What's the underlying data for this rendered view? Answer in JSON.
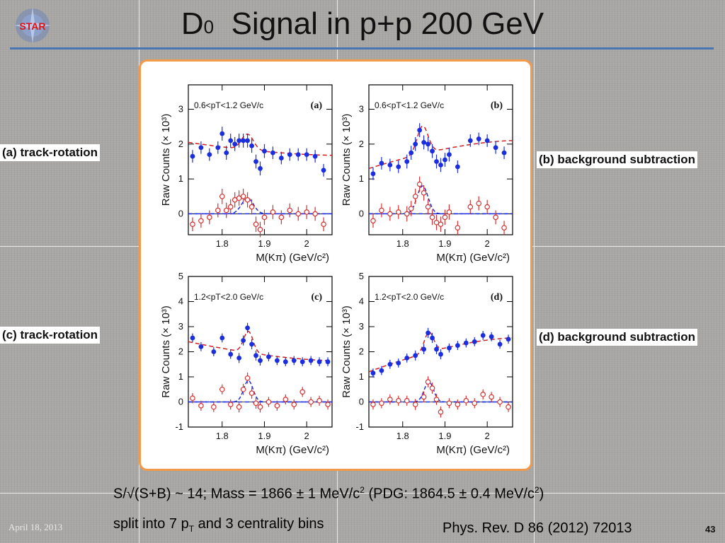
{
  "slide": {
    "title_main": "D",
    "title_sup": "0",
    "title_rest": "  Signal in p+p 200 GeV",
    "logo_text": "STAR",
    "labels": {
      "a": "(a) track-rotation",
      "b": "(b) background subtraction",
      "c": "(c) track-rotation",
      "d": "(d) background subtraction"
    },
    "line1_a": "S/√(S+B) ~ 14; Mass = 1866 ± 1 MeV/c",
    "line1_sup1": "2",
    "line1_b": " (PDG: 1864.5 ± 0.4 MeV/c",
    "line1_sup2": "2",
    "line1_c": ")",
    "line2_a": "split into 7 p",
    "line2_sub": "T",
    "line2_b": " and 3 centrality bins",
    "reference": "Phys. Rev. D 86 (2012) 72013",
    "date": "April 18, 2013",
    "page_number": "43"
  },
  "colors": {
    "accent_rule": "#4a77b4",
    "frame_border": "#f39a4a",
    "filled_points": "#1a2ee0",
    "open_points": "#d83030",
    "fit_red": "#d02020",
    "fit_blue": "#1a2ee0"
  },
  "chart_data": [
    {
      "type": "scatter",
      "panel": "(a)",
      "annotation": "0.6<pT<1.2 GeV/c",
      "xlabel": "M(Kπ) (GeV/c²)",
      "ylabel": "Raw Counts (× 10³)",
      "xlim": [
        1.72,
        2.06
      ],
      "ylim": [
        -0.6,
        3.7
      ],
      "xticks": [
        1.8,
        1.9,
        2.0
      ],
      "xtick_labels": [
        "1.8",
        "1.9",
        "2"
      ],
      "yticks": [
        0,
        1,
        2,
        3
      ],
      "ytick_labels": [
        "0",
        "1",
        "2",
        "3"
      ],
      "filled": {
        "x": [
          1.73,
          1.75,
          1.77,
          1.79,
          1.8,
          1.81,
          1.82,
          1.83,
          1.84,
          1.85,
          1.86,
          1.87,
          1.88,
          1.89,
          1.9,
          1.92,
          1.94,
          1.96,
          1.98,
          2.0,
          2.02,
          2.04
        ],
        "y": [
          1.65,
          1.9,
          1.7,
          1.9,
          2.3,
          1.75,
          2.1,
          2.0,
          2.1,
          2.1,
          2.1,
          1.95,
          1.5,
          1.3,
          1.8,
          1.75,
          1.6,
          1.7,
          1.7,
          1.7,
          1.65,
          1.25
        ],
        "err": [
          0.18,
          0.18,
          0.18,
          0.18,
          0.2,
          0.2,
          0.2,
          0.2,
          0.2,
          0.2,
          0.2,
          0.2,
          0.2,
          0.2,
          0.2,
          0.18,
          0.18,
          0.18,
          0.18,
          0.18,
          0.18,
          0.18
        ]
      },
      "open": {
        "x": [
          1.73,
          1.75,
          1.77,
          1.79,
          1.8,
          1.81,
          1.82,
          1.83,
          1.84,
          1.85,
          1.86,
          1.87,
          1.88,
          1.89,
          1.9,
          1.92,
          1.94,
          1.96,
          1.98,
          2.0,
          2.02,
          2.04
        ],
        "y": [
          -0.3,
          -0.2,
          -0.1,
          0.1,
          0.5,
          0.1,
          0.2,
          0.4,
          0.45,
          0.5,
          0.4,
          0.2,
          -0.3,
          -0.45,
          -0.1,
          0.05,
          -0.1,
          0.1,
          0.0,
          0.05,
          0.0,
          -0.3
        ],
        "err": [
          0.2,
          0.2,
          0.2,
          0.2,
          0.22,
          0.22,
          0.22,
          0.22,
          0.22,
          0.22,
          0.22,
          0.22,
          0.22,
          0.22,
          0.22,
          0.2,
          0.2,
          0.2,
          0.2,
          0.2,
          0.2,
          0.2
        ]
      },
      "background_fit": {
        "start": 1.72,
        "end": 2.06,
        "y_start": 2.05,
        "y_end": 1.68
      },
      "peak_fit": {
        "mean": 1.86,
        "sigma": 0.014,
        "amplitude": 0.45
      }
    },
    {
      "type": "scatter",
      "panel": "(b)",
      "annotation": "0.6<pT<1.2 GeV/c",
      "xlabel": "M(Kπ) (GeV/c²)",
      "ylabel": "Raw Counts (× 10³)",
      "xlim": [
        1.72,
        2.06
      ],
      "ylim": [
        -0.6,
        3.7
      ],
      "xticks": [
        1.8,
        1.9,
        2.0
      ],
      "xtick_labels": [
        "1.8",
        "1.9",
        "2"
      ],
      "yticks": [
        0,
        1,
        2,
        3
      ],
      "ytick_labels": [
        "0",
        "1",
        "2",
        "3"
      ],
      "filled": {
        "x": [
          1.73,
          1.75,
          1.77,
          1.79,
          1.81,
          1.82,
          1.83,
          1.84,
          1.85,
          1.86,
          1.87,
          1.88,
          1.89,
          1.9,
          1.91,
          1.93,
          1.96,
          1.98,
          2.0,
          2.02,
          2.04
        ],
        "y": [
          1.15,
          1.45,
          1.4,
          1.35,
          1.5,
          1.75,
          2.0,
          2.4,
          2.05,
          2.0,
          1.8,
          1.5,
          1.4,
          1.55,
          1.7,
          1.35,
          2.1,
          2.15,
          2.1,
          1.9,
          1.75
        ],
        "err": [
          0.18,
          0.18,
          0.18,
          0.18,
          0.2,
          0.2,
          0.2,
          0.2,
          0.2,
          0.2,
          0.2,
          0.2,
          0.2,
          0.2,
          0.2,
          0.18,
          0.18,
          0.18,
          0.18,
          0.18,
          0.18
        ]
      },
      "open": {
        "x": [
          1.73,
          1.75,
          1.77,
          1.79,
          1.81,
          1.82,
          1.83,
          1.84,
          1.85,
          1.86,
          1.87,
          1.88,
          1.89,
          1.9,
          1.91,
          1.93,
          1.96,
          1.98,
          2.0,
          2.02,
          2.04
        ],
        "y": [
          -0.2,
          0.1,
          0.0,
          0.05,
          0.0,
          0.15,
          0.5,
          0.85,
          0.6,
          0.2,
          -0.1,
          -0.25,
          -0.3,
          -0.1,
          0.05,
          -0.4,
          0.2,
          0.3,
          0.2,
          -0.1,
          -0.4
        ],
        "err": [
          0.2,
          0.2,
          0.2,
          0.2,
          0.22,
          0.22,
          0.22,
          0.22,
          0.22,
          0.22,
          0.22,
          0.22,
          0.22,
          0.22,
          0.22,
          0.2,
          0.2,
          0.2,
          0.2,
          0.2,
          0.2
        ]
      },
      "background_fit": {
        "start": 1.72,
        "end": 2.06,
        "y_start": 1.3,
        "y_end": 2.1
      },
      "peak_fit": {
        "mean": 1.847,
        "sigma": 0.013,
        "amplitude": 0.8
      }
    },
    {
      "type": "scatter",
      "panel": "(c)",
      "annotation": "1.2<pT<2.0 GeV/c",
      "xlabel": "M(Kπ) (GeV/c²)",
      "ylabel": "Raw Counts (× 10³)",
      "xlim": [
        1.72,
        2.06
      ],
      "ylim": [
        -1.0,
        5.0
      ],
      "xticks": [
        1.8,
        1.9,
        2.0
      ],
      "xtick_labels": [
        "1.8",
        "1.9",
        "2"
      ],
      "yticks": [
        -1,
        0,
        1,
        2,
        3,
        4,
        5
      ],
      "ytick_labels": [
        "-1",
        "0",
        "1",
        "2",
        "3",
        "4",
        "5"
      ],
      "filled": {
        "x": [
          1.73,
          1.75,
          1.78,
          1.8,
          1.82,
          1.84,
          1.85,
          1.86,
          1.87,
          1.88,
          1.89,
          1.91,
          1.93,
          1.95,
          1.97,
          1.99,
          2.01,
          2.03,
          2.05
        ],
        "y": [
          2.55,
          2.2,
          2.0,
          2.55,
          1.9,
          1.75,
          2.45,
          2.95,
          2.3,
          1.85,
          1.65,
          1.8,
          1.65,
          1.6,
          1.65,
          1.6,
          1.65,
          1.6,
          1.6
        ],
        "err": [
          0.18,
          0.18,
          0.18,
          0.18,
          0.18,
          0.2,
          0.2,
          0.2,
          0.2,
          0.2,
          0.2,
          0.18,
          0.18,
          0.18,
          0.18,
          0.18,
          0.18,
          0.18,
          0.18
        ]
      },
      "open": {
        "x": [
          1.73,
          1.75,
          1.78,
          1.8,
          1.82,
          1.84,
          1.85,
          1.86,
          1.87,
          1.88,
          1.89,
          1.91,
          1.93,
          1.95,
          1.97,
          1.99,
          2.01,
          2.03,
          2.05
        ],
        "y": [
          0.15,
          -0.15,
          -0.2,
          0.5,
          -0.1,
          -0.2,
          0.5,
          0.95,
          0.35,
          -0.05,
          -0.2,
          0.0,
          -0.15,
          0.1,
          -0.1,
          0.4,
          0.0,
          0.05,
          -0.1
        ],
        "err": [
          0.2,
          0.2,
          0.2,
          0.2,
          0.2,
          0.22,
          0.22,
          0.22,
          0.22,
          0.22,
          0.22,
          0.2,
          0.2,
          0.2,
          0.2,
          0.2,
          0.2,
          0.2,
          0.2
        ]
      },
      "background_fit": {
        "start": 1.72,
        "end": 2.06,
        "y_start": 2.4,
        "y_end": 1.65
      },
      "peak_fit": {
        "mean": 1.862,
        "sigma": 0.011,
        "amplitude": 0.85
      }
    },
    {
      "type": "scatter",
      "panel": "(d)",
      "annotation": "1.2<pT<2.0 GeV/c",
      "xlabel": "M(Kπ) (GeV/c²)",
      "ylabel": "Raw Counts (× 10³)",
      "xlim": [
        1.72,
        2.06
      ],
      "ylim": [
        -1.0,
        5.0
      ],
      "xticks": [
        1.8,
        1.9,
        2.0
      ],
      "xtick_labels": [
        "1.8",
        "1.9",
        "2"
      ],
      "yticks": [
        -1,
        0,
        1,
        2,
        3,
        4,
        5
      ],
      "ytick_labels": [
        "-1",
        "0",
        "1",
        "2",
        "3",
        "4",
        "5"
      ],
      "filled": {
        "x": [
          1.73,
          1.75,
          1.77,
          1.79,
          1.81,
          1.83,
          1.85,
          1.86,
          1.87,
          1.88,
          1.89,
          1.91,
          1.93,
          1.95,
          1.97,
          1.99,
          2.01,
          2.03,
          2.05
        ],
        "y": [
          1.15,
          1.25,
          1.5,
          1.55,
          1.75,
          1.85,
          2.1,
          2.75,
          2.55,
          2.1,
          1.9,
          2.15,
          2.25,
          2.35,
          2.4,
          2.65,
          2.6,
          2.3,
          2.5
        ],
        "err": [
          0.18,
          0.18,
          0.18,
          0.18,
          0.18,
          0.2,
          0.2,
          0.2,
          0.2,
          0.2,
          0.2,
          0.18,
          0.18,
          0.18,
          0.18,
          0.18,
          0.18,
          0.18,
          0.18
        ]
      },
      "open": {
        "x": [
          1.73,
          1.75,
          1.77,
          1.79,
          1.81,
          1.83,
          1.85,
          1.86,
          1.87,
          1.88,
          1.89,
          1.91,
          1.93,
          1.95,
          1.97,
          1.99,
          2.01,
          2.03,
          2.05
        ],
        "y": [
          -0.1,
          -0.05,
          0.1,
          0.05,
          0.05,
          -0.1,
          0.2,
          0.8,
          0.55,
          0.1,
          -0.4,
          -0.05,
          -0.1,
          0.05,
          -0.05,
          0.3,
          0.2,
          0.0,
          -0.2
        ],
        "err": [
          0.2,
          0.2,
          0.2,
          0.2,
          0.2,
          0.22,
          0.22,
          0.22,
          0.22,
          0.22,
          0.22,
          0.2,
          0.2,
          0.2,
          0.2,
          0.2,
          0.2,
          0.2,
          0.2
        ]
      },
      "background_fit": {
        "start": 1.72,
        "end": 2.06,
        "y_start": 1.2,
        "y_end": 2.55
      },
      "peak_fit": {
        "mean": 1.862,
        "sigma": 0.011,
        "amplitude": 0.8
      }
    }
  ]
}
